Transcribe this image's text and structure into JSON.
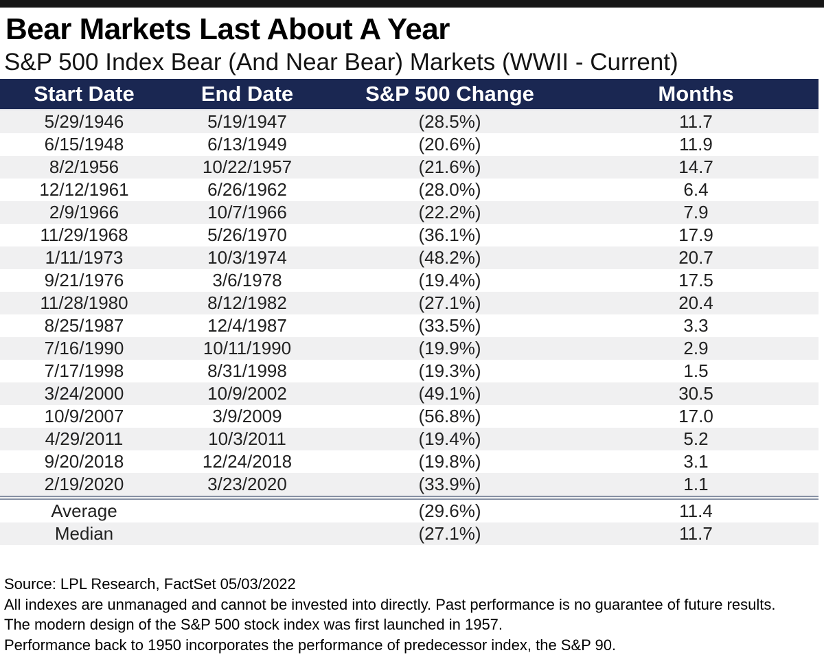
{
  "page": {
    "title": "Bear Markets Last About A Year",
    "subtitle": "S&P 500 Index Bear (And Near Bear) Markets (WWII - Current)"
  },
  "chart_data": {
    "type": "table",
    "title": "Bear Markets Last About A Year",
    "subtitle": "S&P 500 Index Bear (And Near Bear) Markets (WWII - Current)",
    "columns": [
      "Start Date",
      "End Date",
      "S&P 500 Change",
      "Months"
    ],
    "rows": [
      {
        "start_date": "5/29/1946",
        "end_date": "5/19/1947",
        "change": "(28.5%)",
        "change_pct": -28.5,
        "months": "11.7"
      },
      {
        "start_date": "6/15/1948",
        "end_date": "6/13/1949",
        "change": "(20.6%)",
        "change_pct": -20.6,
        "months": "11.9"
      },
      {
        "start_date": "8/2/1956",
        "end_date": "10/22/1957",
        "change": "(21.6%)",
        "change_pct": -21.6,
        "months": "14.7"
      },
      {
        "start_date": "12/12/1961",
        "end_date": "6/26/1962",
        "change": "(28.0%)",
        "change_pct": -28.0,
        "months": "6.4"
      },
      {
        "start_date": "2/9/1966",
        "end_date": "10/7/1966",
        "change": "(22.2%)",
        "change_pct": -22.2,
        "months": "7.9"
      },
      {
        "start_date": "11/29/1968",
        "end_date": "5/26/1970",
        "change": "(36.1%)",
        "change_pct": -36.1,
        "months": "17.9"
      },
      {
        "start_date": "1/11/1973",
        "end_date": "10/3/1974",
        "change": "(48.2%)",
        "change_pct": -48.2,
        "months": "20.7"
      },
      {
        "start_date": "9/21/1976",
        "end_date": "3/6/1978",
        "change": "(19.4%)",
        "change_pct": -19.4,
        "months": "17.5"
      },
      {
        "start_date": "11/28/1980",
        "end_date": "8/12/1982",
        "change": "(27.1%)",
        "change_pct": -27.1,
        "months": "20.4"
      },
      {
        "start_date": "8/25/1987",
        "end_date": "12/4/1987",
        "change": "(33.5%)",
        "change_pct": -33.5,
        "months": "3.3"
      },
      {
        "start_date": "7/16/1990",
        "end_date": "10/11/1990",
        "change": "(19.9%)",
        "change_pct": -19.9,
        "months": "2.9"
      },
      {
        "start_date": "7/17/1998",
        "end_date": "8/31/1998",
        "change": "(19.3%)",
        "change_pct": -19.3,
        "months": "1.5"
      },
      {
        "start_date": "3/24/2000",
        "end_date": "10/9/2002",
        "change": "(49.1%)",
        "change_pct": -49.1,
        "months": "30.5"
      },
      {
        "start_date": "10/9/2007",
        "end_date": "3/9/2009",
        "change": "(56.8%)",
        "change_pct": -56.8,
        "months": "17.0"
      },
      {
        "start_date": "4/29/2011",
        "end_date": "10/3/2011",
        "change": "(19.4%)",
        "change_pct": -19.4,
        "months": "5.2"
      },
      {
        "start_date": "9/20/2018",
        "end_date": "12/24/2018",
        "change": "(19.8%)",
        "change_pct": -19.8,
        "months": "3.1"
      },
      {
        "start_date": "2/19/2020",
        "end_date": "3/23/2020",
        "change": "(33.9%)",
        "change_pct": -33.9,
        "months": "1.1"
      }
    ],
    "summary": [
      {
        "label": "Average",
        "change": "(29.6%)",
        "change_pct": -29.6,
        "months": "11.4"
      },
      {
        "label": "Median",
        "change": "(27.1%)",
        "change_pct": -27.1,
        "months": "11.7"
      }
    ]
  },
  "footnotes": [
    "Source: LPL Research, FactSet 05/03/2022",
    "All indexes are unmanaged and cannot be invested into directly. Past performance is no guarantee of future results.",
    "The modern design of the S&P 500 stock index was first launched in 1957.",
    "Performance back to 1950 incorporates the performance of predecessor index, the S&P 90."
  ],
  "colors": {
    "top_bar": "#161616",
    "header_bg": "#1a2752",
    "header_text": "#ffffff",
    "negative_red": "#a03a3c",
    "stripe": "#f0f0f1",
    "divider": "#8690a3"
  }
}
